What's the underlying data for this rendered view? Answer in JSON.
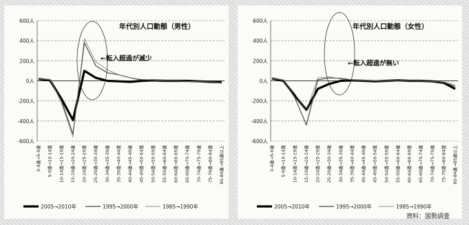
{
  "chart_data": [
    {
      "type": "line",
      "title": "年代別人口動態（男性）",
      "annotation": "←転入超過が減少",
      "ylabel": "",
      "ylim": [
        -600,
        600
      ],
      "yticks": [
        600,
        400,
        200,
        0,
        -200,
        -400,
        -600
      ],
      "ytick_labels": [
        "600人",
        "400人",
        "200人",
        "0人",
        "-200人",
        "-400人",
        "-600人"
      ],
      "grid": true,
      "legend": "bottom",
      "categories": [
        "0-4歳→5-9歳",
        "5-9歳→10-14歳",
        "10-14歳→15-19歳",
        "15-19歳→20-24歳",
        "20-24歳→25-29歳",
        "25-29歳→30-34歳",
        "30-34歳→35-39歳",
        "35-39歳→40-44歳",
        "40-44歳→45-49歳",
        "45-49歳→50-54歳",
        "50-54歳→55-59歳",
        "55-59歳→60-64歳",
        "60-64歳→65-69歳",
        "65-69歳→70-74歳",
        "70-74歳→75-79歳",
        "75-79歳→80-84歳",
        "80-84歳→85歳以上"
      ],
      "series": [
        {
          "name": "2005→2010年",
          "values": [
            20,
            5,
            -180,
            -390,
            100,
            30,
            0,
            -5,
            -10,
            0,
            5,
            0,
            0,
            0,
            -5,
            -10,
            -15
          ]
        },
        {
          "name": "1995→2000年",
          "values": [
            20,
            10,
            -200,
            -530,
            380,
            150,
            80,
            60,
            30,
            10,
            10,
            0,
            0,
            -5,
            -5,
            -10,
            -20
          ]
        },
        {
          "name": "1985→1990年",
          "values": [
            25,
            15,
            -220,
            -560,
            420,
            190,
            110,
            60,
            30,
            15,
            10,
            0,
            0,
            -5,
            -10,
            -10,
            -25
          ]
        }
      ]
    },
    {
      "type": "line",
      "title": "年代別人口動態（女性）",
      "annotation": "←転入超過が無い",
      "ylabel": "",
      "ylim": [
        -600,
        600
      ],
      "yticks": [
        600,
        400,
        200,
        0,
        -200,
        -400,
        -600
      ],
      "ytick_labels": [
        "600人",
        "400人",
        "200人",
        "0人",
        "-200人",
        "-400人",
        "-600人"
      ],
      "grid": true,
      "legend": "bottom",
      "categories": [
        "0-4歳→5-9歳",
        "5-9歳→10-14歳",
        "10-14歳→15-19歳",
        "15-19歳→20-24歳",
        "20-24歳→25-29歳",
        "25-29歳→30-34歳",
        "30-34歳→35-39歳",
        "35-39歳→40-44歳",
        "40-44歳→45-49歳",
        "45-49歳→50-54歳",
        "50-54歳→55-59歳",
        "55-59歳→60-64歳",
        "60-64歳→65-69歳",
        "65-69歳→70-74歳",
        "70-74歳→75-79歳",
        "75-79歳→80-84歳",
        "80-84歳→85歳以上"
      ],
      "series": [
        {
          "name": "2005→2010年",
          "values": [
            25,
            0,
            -150,
            -290,
            -80,
            -30,
            0,
            5,
            0,
            -5,
            0,
            5,
            0,
            0,
            -5,
            -20,
            -80
          ]
        },
        {
          "name": "1995→2000年",
          "values": [
            25,
            5,
            -170,
            -440,
            10,
            30,
            25,
            10,
            0,
            0,
            0,
            0,
            0,
            0,
            -5,
            -15,
            -55
          ]
        },
        {
          "name": "1985→1990年",
          "values": [
            30,
            10,
            -130,
            -300,
            30,
            40,
            20,
            10,
            5,
            0,
            0,
            0,
            0,
            0,
            -5,
            -10,
            -40
          ]
        }
      ]
    }
  ],
  "colors": {
    "series": [
      "#000000",
      "#444444",
      "#6a6a6a"
    ],
    "grid": "#9a9a9a",
    "zero_line": "#333333",
    "highlight_circle": "#333333"
  },
  "source_note": "資料：国勢調査"
}
